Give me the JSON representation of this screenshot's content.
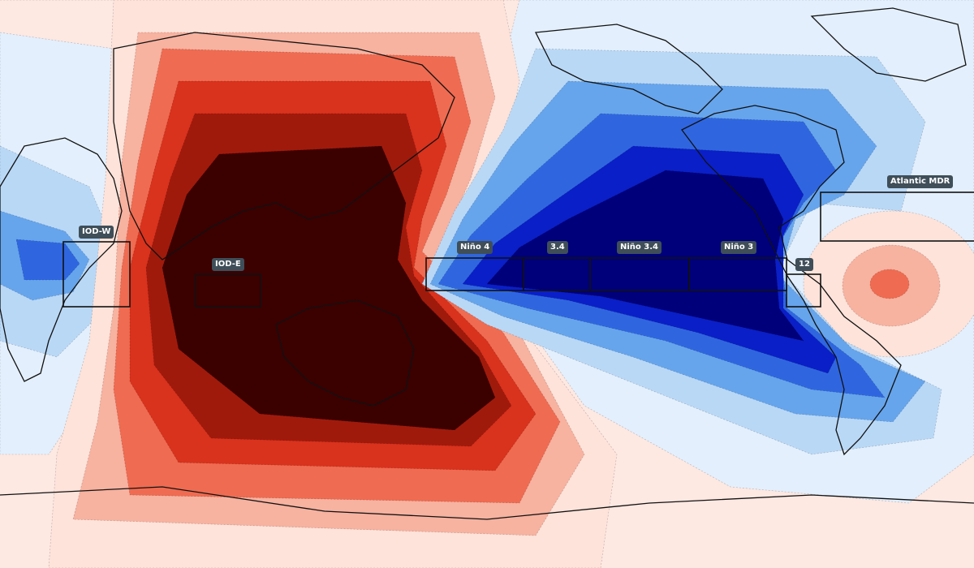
{
  "map": {
    "colors": {
      "warm_1": "#fde3da",
      "warm_2": "#f7b2a0",
      "warm_3": "#ef6b51",
      "warm_4": "#d9321d",
      "warm_5": "#a01a0c",
      "warm_6": "#3b0000",
      "cool_1": "#e3effc",
      "cool_2": "#b9d8f6",
      "cool_3": "#66a5ec",
      "cool_4": "#2f66e0",
      "cool_5": "#0a1fc7",
      "cool_6": "#00007a"
    },
    "regions": [
      {
        "id": "iod-w",
        "label": "IOD-W"
      },
      {
        "id": "iod-e",
        "label": "IOD-E"
      },
      {
        "id": "nino-4",
        "label": "Niño 4"
      },
      {
        "id": "nino-34-short",
        "label": "3.4"
      },
      {
        "id": "nino-34",
        "label": "Niño 3.4"
      },
      {
        "id": "nino-3",
        "label": "Niño 3"
      },
      {
        "id": "nino-12",
        "label": "12"
      },
      {
        "id": "atlantic-mdr",
        "label": "Atlantic MDR"
      }
    ]
  }
}
